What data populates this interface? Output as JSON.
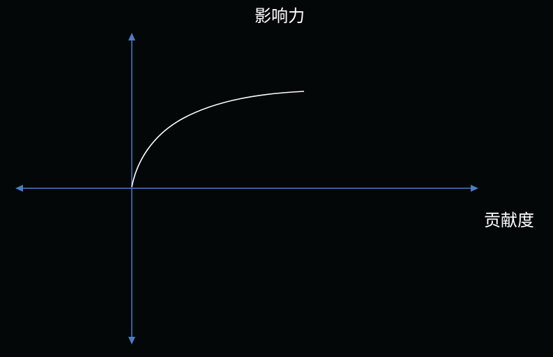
{
  "diagram": {
    "y_axis_label": "影响力",
    "x_axis_label": "贡献度",
    "colors": {
      "background": "#030708",
      "axis": "#4d7cc6",
      "curve": "#ffffff",
      "text": "#ffffff"
    },
    "curve_shape": "concave increasing, starting at origin and leveling off"
  }
}
